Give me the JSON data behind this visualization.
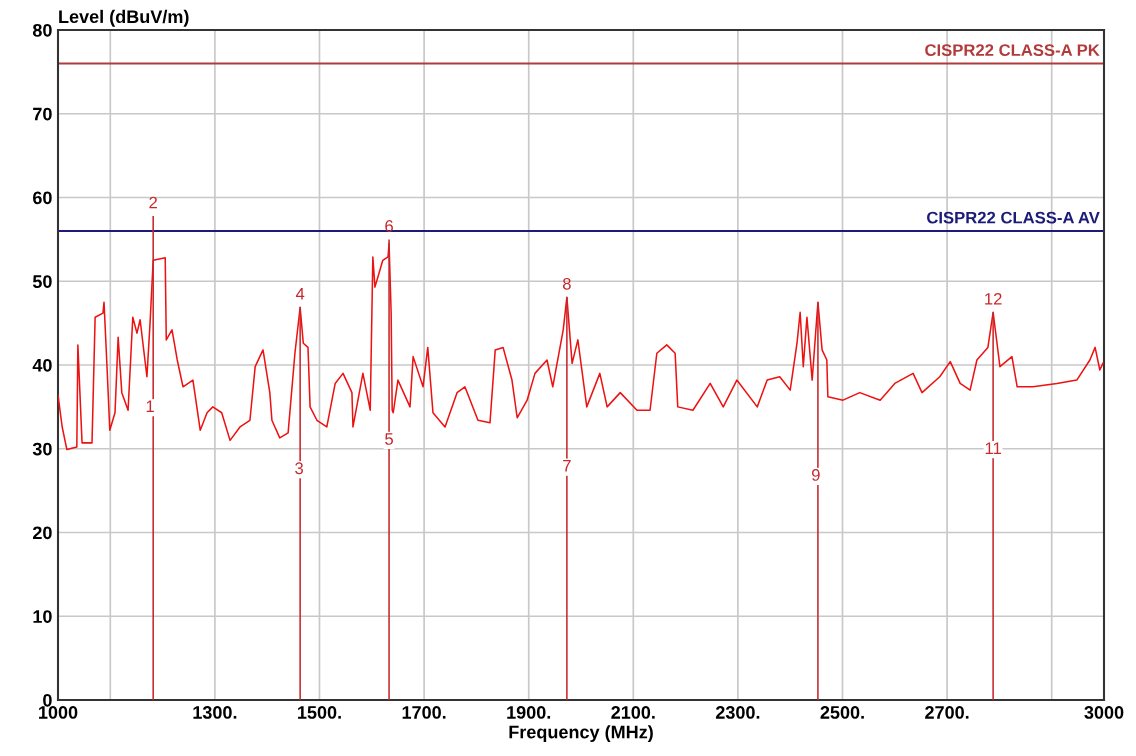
{
  "chart_data": {
    "type": "line",
    "xlabel": "Frequency (MHz)",
    "ylabel": "Level (dBuV/m)",
    "xlim": [
      1000,
      3000
    ],
    "ylim": [
      0,
      80
    ],
    "xticks": [
      {
        "value": 1000,
        "label": "1000"
      },
      {
        "value": 1100,
        "label": null
      },
      {
        "value": 1300,
        "label": "1300."
      },
      {
        "value": 1500,
        "label": "1500."
      },
      {
        "value": 1700,
        "label": "1700."
      },
      {
        "value": 1900,
        "label": "1900."
      },
      {
        "value": 2100,
        "label": "2100."
      },
      {
        "value": 2300,
        "label": "2300."
      },
      {
        "value": 2500,
        "label": "2500."
      },
      {
        "value": 2700,
        "label": "2700."
      },
      {
        "value": 2900,
        "label": null
      },
      {
        "value": 3000,
        "label": "3000"
      }
    ],
    "yticks": [
      0,
      10,
      20,
      30,
      40,
      50,
      60,
      70,
      80
    ],
    "grid": true,
    "legend": false,
    "marker": "none",
    "line_style": "solid",
    "series": [
      {
        "color": "#ee1111",
        "x": [
          1000,
          1008,
          1017,
          1036,
          1038,
          1046,
          1065,
          1071,
          1086,
          1088,
          1094,
          1099,
          1109,
          1115,
          1122,
          1134,
          1143,
          1151,
          1157,
          1170,
          1176,
          1182,
          1205,
          1207,
          1218,
          1228,
          1239,
          1258,
          1272,
          1285,
          1296,
          1313,
          1329,
          1348,
          1367,
          1377,
          1392,
          1405,
          1409,
          1424,
          1440,
          1453,
          1463,
          1469,
          1478,
          1482,
          1495,
          1514,
          1530,
          1545,
          1562,
          1564,
          1583,
          1597,
          1602,
          1606,
          1621,
          1631,
          1633,
          1637,
          1639,
          1641,
          1650,
          1673,
          1679,
          1698,
          1707,
          1717,
          1740,
          1763,
          1778,
          1803,
          1826,
          1836,
          1851,
          1868,
          1878,
          1897,
          1912,
          1935,
          1946,
          1966,
          1973,
          1983,
          1994,
          2011,
          2036,
          2050,
          2075,
          2107,
          2132,
          2145,
          2164,
          2180,
          2185,
          2214,
          2247,
          2272,
          2298,
          2337,
          2356,
          2380,
          2400,
          2413,
          2419,
          2425,
          2432,
          2442,
          2453,
          2461,
          2470,
          2472,
          2501,
          2533,
          2572,
          2600,
          2635,
          2652,
          2686,
          2706,
          2725,
          2744,
          2757,
          2778,
          2788,
          2801,
          2824,
          2834,
          2864,
          2910,
          2948,
          2973,
          2983,
          2992,
          2998
        ],
        "values": [
          36.4,
          32.6,
          29.9,
          30.2,
          42.4,
          30.7,
          30.7,
          45.7,
          46.2,
          47.5,
          39.4,
          32.2,
          34.3,
          43.3,
          36.7,
          34.6,
          45.7,
          43.8,
          45.4,
          38.6,
          45.0,
          52.5,
          52.8,
          43.0,
          44.2,
          40.6,
          37.4,
          38.2,
          32.2,
          34.3,
          35.0,
          34.3,
          31.0,
          32.6,
          33.4,
          39.8,
          41.8,
          36.7,
          33.4,
          31.3,
          31.9,
          41.4,
          46.9,
          42.6,
          42.1,
          35.0,
          33.4,
          32.6,
          37.8,
          39.0,
          36.7,
          32.6,
          39.0,
          34.6,
          52.9,
          49.3,
          52.5,
          52.9,
          54.5,
          46.2,
          34.6,
          34.3,
          38.2,
          35.0,
          41.0,
          37.4,
          42.1,
          34.3,
          32.6,
          36.7,
          37.4,
          33.4,
          33.1,
          41.8,
          42.1,
          38.2,
          33.7,
          35.8,
          39.0,
          40.6,
          37.4,
          44.2,
          48.1,
          40.2,
          43.0,
          35.0,
          39.0,
          35.0,
          36.7,
          34.6,
          34.6,
          41.4,
          42.4,
          41.4,
          35.0,
          34.6,
          37.8,
          35.0,
          38.2,
          35.0,
          38.2,
          38.6,
          37.0,
          42.6,
          46.3,
          39.8,
          45.7,
          38.2,
          47.5,
          41.8,
          40.6,
          36.2,
          35.8,
          36.7,
          35.8,
          37.8,
          39.0,
          36.7,
          38.6,
          40.4,
          37.8,
          37.0,
          40.6,
          42.1,
          46.3,
          39.8,
          41.0,
          37.4,
          37.4,
          37.8,
          38.2,
          40.6,
          42.1,
          39.4,
          40.2
        ]
      },
      {
        "type": "bar",
        "color": "#c8282c",
        "x": [
          1182,
          1463,
          1633,
          1973,
          2453,
          2788
        ],
        "values": [
          57.8,
          46.9,
          55.0,
          48.1,
          47.5,
          46.3
        ]
      }
    ],
    "ref_lines": [
      {
        "axis": "y",
        "value": 76,
        "label": "CISPR22 CLASS-A PK",
        "color": "#b23a3a"
      },
      {
        "axis": "y",
        "value": 56,
        "label": "CISPR22 CLASS-A AV",
        "color": "#1c1c78"
      }
    ],
    "annotations": [
      {
        "text": "1",
        "x": 1176,
        "y": 34.9
      },
      {
        "text": "2",
        "x": 1182,
        "y": 57.8
      },
      {
        "text": "3",
        "x": 1461,
        "y": 27.5
      },
      {
        "text": "4",
        "x": 1463,
        "y": 46.9
      },
      {
        "text": "5",
        "x": 1633,
        "y": 31.0
      },
      {
        "text": "6",
        "x": 1633,
        "y": 55.0
      },
      {
        "text": "7",
        "x": 1973,
        "y": 27.8
      },
      {
        "text": "8",
        "x": 1973,
        "y": 48.1
      },
      {
        "text": "9",
        "x": 2449,
        "y": 26.7
      },
      {
        "text": "11",
        "x": 2788,
        "y": 29.9
      },
      {
        "text": "12",
        "x": 2788,
        "y": 46.3
      }
    ]
  }
}
